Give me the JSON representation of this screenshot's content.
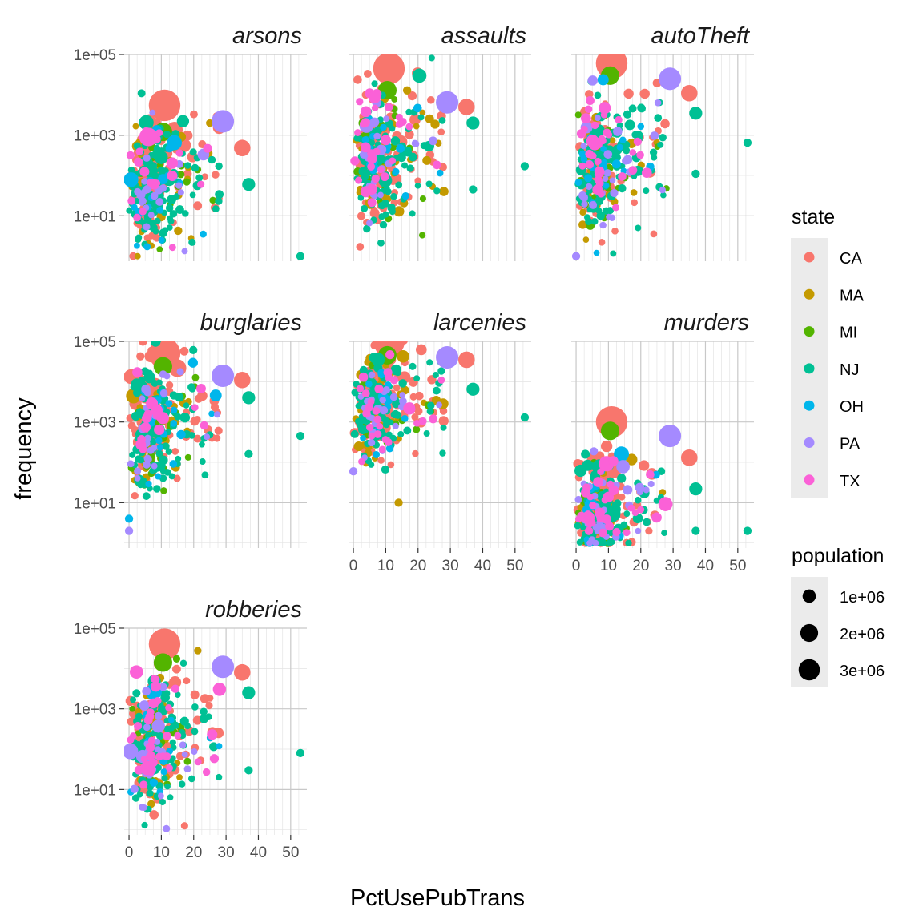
{
  "chart_data": {
    "type": "scatter",
    "xlabel": "PctUsePubTrans",
    "ylabel": "frequency",
    "x_ticks": [
      "0",
      "10",
      "20",
      "30",
      "40",
      "50"
    ],
    "y_ticks": [
      "1e+01",
      "1e+03",
      "1e+05"
    ],
    "xlim": [
      -1.5,
      55
    ],
    "ylim": [
      0.75,
      100000
    ],
    "y_scale": "log10",
    "grid": "on",
    "legend_position": "right",
    "facets": [
      "arsons",
      "assaults",
      "autoTheft",
      "burglaries",
      "larcenies",
      "murders",
      "robberies"
    ],
    "legend_state": {
      "title": "state",
      "entries": [
        {
          "label": "CA",
          "color": "#F8766D"
        },
        {
          "label": "MA",
          "color": "#C49A00"
        },
        {
          "label": "MI",
          "color": "#53B400"
        },
        {
          "label": "NJ",
          "color": "#00C094"
        },
        {
          "label": "OH",
          "color": "#00B6EB"
        },
        {
          "label": "PA",
          "color": "#A58AFF"
        },
        {
          "label": "TX",
          "color": "#FB61D7"
        }
      ]
    },
    "legend_population": {
      "title": "population",
      "entries": [
        {
          "label": "1e+06",
          "value": 1000000
        },
        {
          "label": "2e+06",
          "value": 2000000
        },
        {
          "label": "3e+06",
          "value": 3000000
        }
      ]
    },
    "highlight_points": {
      "arsons": [
        {
          "state": "CA",
          "x": 11,
          "y": 5500,
          "population": 3500000
        },
        {
          "state": "MI",
          "x": 10.5,
          "y": 1200,
          "population": 1000000
        },
        {
          "state": "PA",
          "x": 29,
          "y": 2200,
          "population": 1600000
        },
        {
          "state": "OH",
          "x": 14,
          "y": 650,
          "population": 600000
        },
        {
          "state": "CA",
          "x": 35,
          "y": 480,
          "population": 750000
        },
        {
          "state": "NJ",
          "x": 37,
          "y": 60,
          "population": 400000
        },
        {
          "state": "PA",
          "x": 23,
          "y": 330,
          "population": 300000
        },
        {
          "state": "NJ",
          "x": 53,
          "y": 1,
          "population": 100000
        },
        {
          "state": "TX",
          "x": 6,
          "y": 900,
          "population": 1000000
        }
      ],
      "assaults": [
        {
          "state": "CA",
          "x": 11,
          "y": 45000,
          "population": 3500000
        },
        {
          "state": "MI",
          "x": 10.5,
          "y": 13000,
          "population": 1000000
        },
        {
          "state": "PA",
          "x": 29,
          "y": 6500,
          "population": 1600000
        },
        {
          "state": "CA",
          "x": 35,
          "y": 5000,
          "population": 750000
        },
        {
          "state": "NJ",
          "x": 37,
          "y": 2000,
          "population": 400000
        },
        {
          "state": "NJ",
          "x": 53,
          "y": 170,
          "population": 100000
        },
        {
          "state": "MA",
          "x": 28,
          "y": 40,
          "population": 150000
        },
        {
          "state": "NJ",
          "x": 37,
          "y": 45,
          "population": 100000
        }
      ],
      "autoTheft": [
        {
          "state": "CA",
          "x": 11,
          "y": 60000,
          "population": 3500000
        },
        {
          "state": "MI",
          "x": 10.5,
          "y": 30000,
          "population": 1000000
        },
        {
          "state": "PA",
          "x": 29,
          "y": 25000,
          "population": 1600000
        },
        {
          "state": "CA",
          "x": 35,
          "y": 11000,
          "population": 750000
        },
        {
          "state": "NJ",
          "x": 37,
          "y": 3500,
          "population": 400000
        },
        {
          "state": "NJ",
          "x": 53,
          "y": 650,
          "population": 100000
        },
        {
          "state": "NJ",
          "x": 37,
          "y": 110,
          "population": 100000
        },
        {
          "state": "PA",
          "x": 0,
          "y": 1,
          "population": 100000
        }
      ],
      "burglaries": [
        {
          "state": "CA",
          "x": 11,
          "y": 50000,
          "population": 3500000
        },
        {
          "state": "MI",
          "x": 10.5,
          "y": 24000,
          "population": 1000000
        },
        {
          "state": "PA",
          "x": 29,
          "y": 14000,
          "population": 1600000
        },
        {
          "state": "CA",
          "x": 35,
          "y": 11000,
          "population": 750000
        },
        {
          "state": "NJ",
          "x": 37,
          "y": 4000,
          "population": 400000
        },
        {
          "state": "NJ",
          "x": 53,
          "y": 450,
          "population": 100000
        },
        {
          "state": "NJ",
          "x": 37,
          "y": 160,
          "population": 100000
        },
        {
          "state": "OH",
          "x": 0,
          "y": 4,
          "population": 100000
        },
        {
          "state": "PA",
          "x": 0,
          "y": 2,
          "population": 100000
        }
      ],
      "larcenies": [
        {
          "state": "CA",
          "x": 11,
          "y": 100000,
          "population": 3500000
        },
        {
          "state": "MI",
          "x": 10.5,
          "y": 45000,
          "population": 1000000
        },
        {
          "state": "PA",
          "x": 29,
          "y": 40000,
          "population": 1600000
        },
        {
          "state": "CA",
          "x": 35,
          "y": 35000,
          "population": 750000
        },
        {
          "state": "NJ",
          "x": 37,
          "y": 6500,
          "population": 400000
        },
        {
          "state": "NJ",
          "x": 53,
          "y": 1300,
          "population": 100000
        },
        {
          "state": "MA",
          "x": 14,
          "y": 10,
          "population": 100000
        },
        {
          "state": "PA",
          "x": 0,
          "y": 60,
          "population": 100000
        }
      ],
      "murders": [
        {
          "state": "CA",
          "x": 11,
          "y": 1000,
          "population": 3500000
        },
        {
          "state": "MI",
          "x": 10.5,
          "y": 600,
          "population": 1000000
        },
        {
          "state": "PA",
          "x": 29,
          "y": 450,
          "population": 1600000
        },
        {
          "state": "CA",
          "x": 35,
          "y": 130,
          "population": 750000
        },
        {
          "state": "NJ",
          "x": 37,
          "y": 22,
          "population": 400000
        },
        {
          "state": "NJ",
          "x": 53,
          "y": 2,
          "population": 100000
        },
        {
          "state": "NJ",
          "x": 37,
          "y": 2,
          "population": 100000
        },
        {
          "state": "OH",
          "x": 14,
          "y": 160,
          "population": 600000
        }
      ],
      "robberies": [
        {
          "state": "CA",
          "x": 11,
          "y": 40000,
          "population": 3500000
        },
        {
          "state": "MI",
          "x": 10.5,
          "y": 14000,
          "population": 1000000
        },
        {
          "state": "PA",
          "x": 29,
          "y": 11000,
          "population": 1600000
        },
        {
          "state": "CA",
          "x": 35,
          "y": 8000,
          "population": 750000
        },
        {
          "state": "NJ",
          "x": 37,
          "y": 2500,
          "population": 400000
        },
        {
          "state": "NJ",
          "x": 53,
          "y": 80,
          "population": 100000
        },
        {
          "state": "NJ",
          "x": 37,
          "y": 30,
          "population": 100000
        }
      ]
    }
  }
}
